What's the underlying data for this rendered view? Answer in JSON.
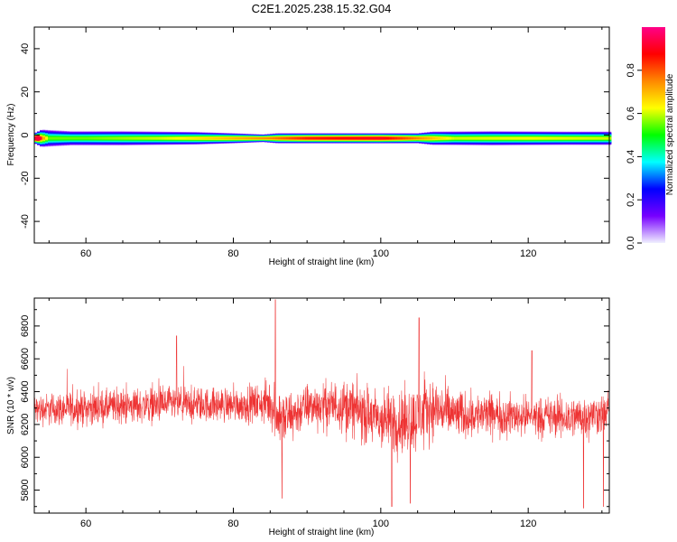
{
  "title": "C2E1.2025.238.15.32.G04",
  "colors": {
    "snr_line": "#ee3333",
    "axis": "#000000",
    "background": "#ffffff"
  },
  "colorbar": {
    "label": "Normalized spectral amplitude",
    "ticks": [
      "0.0",
      "0.2",
      "0.4",
      "0.6",
      "0.8"
    ],
    "range": [
      0,
      1
    ],
    "stops": [
      "#f0f0ff",
      "#7700ff",
      "#0000ff",
      "#00ffff",
      "#00ff00",
      "#ffff00",
      "#ff8800",
      "#ff0000",
      "#ff0088"
    ]
  },
  "chart_data": [
    {
      "type": "heatmap",
      "xlabel": "Height of straight line (km)",
      "ylabel": "Frequency (Hz)",
      "xlim": [
        53,
        131
      ],
      "ylim": [
        -50,
        50
      ],
      "xticks": [
        60,
        80,
        100,
        120
      ],
      "yticks": [
        -40,
        -20,
        0,
        20,
        40
      ],
      "xtick_labels": [
        "60",
        "80",
        "100",
        "120"
      ],
      "ytick_labels": [
        "-40",
        "-20",
        "0",
        "20",
        "40"
      ],
      "band_center_hz": -1.5,
      "band_halfwidth_hz": [
        [
          53,
          2.2
        ],
        [
          54,
          4.0
        ],
        [
          58,
          3.2
        ],
        [
          65,
          3.2
        ],
        [
          75,
          2.8
        ],
        [
          80,
          2.2
        ],
        [
          84,
          1.6
        ],
        [
          86,
          2.2
        ],
        [
          95,
          2.2
        ],
        [
          100,
          2.2
        ],
        [
          105,
          2.2
        ],
        [
          107,
          3.0
        ],
        [
          115,
          3.2
        ],
        [
          125,
          3.0
        ],
        [
          131,
          3.0
        ]
      ],
      "band_peak_amplitude": [
        [
          53,
          1.0
        ],
        [
          55,
          0.55
        ],
        [
          60,
          0.55
        ],
        [
          70,
          0.6
        ],
        [
          80,
          0.7
        ],
        [
          85,
          0.75
        ],
        [
          90,
          0.85
        ],
        [
          100,
          0.9
        ],
        [
          105,
          0.75
        ],
        [
          110,
          0.6
        ],
        [
          120,
          0.62
        ],
        [
          131,
          0.6
        ]
      ]
    },
    {
      "type": "line",
      "xlabel": "Height of straight line (km)",
      "ylabel": "SNR (10 * v/v)",
      "xlim": [
        53,
        131
      ],
      "ylim": [
        5660,
        6970
      ],
      "xticks": [
        60,
        80,
        100,
        120
      ],
      "yticks": [
        5800,
        6000,
        6200,
        6400,
        6600,
        6800
      ],
      "xtick_labels": [
        "60",
        "80",
        "100",
        "120"
      ],
      "ytick_labels": [
        "5800",
        "6000",
        "6200",
        "6400",
        "6600",
        "6800"
      ],
      "series": [
        {
          "mean": [
            [
              53,
              6290
            ],
            [
              60,
              6300
            ],
            [
              70,
              6320
            ],
            [
              80,
              6320
            ],
            [
              85,
              6330
            ],
            [
              87,
              6230
            ],
            [
              90,
              6310
            ],
            [
              95,
              6320
            ],
            [
              100,
              6220
            ],
            [
              104,
              6220
            ],
            [
              107,
              6300
            ],
            [
              110,
              6260
            ],
            [
              115,
              6260
            ],
            [
              120,
              6250
            ],
            [
              125,
              6240
            ],
            [
              131,
              6270
            ]
          ],
          "spread": [
            [
              53,
              140
            ],
            [
              60,
              150
            ],
            [
              70,
              160
            ],
            [
              80,
              150
            ],
            [
              84,
              170
            ],
            [
              85.5,
              260
            ],
            [
              87,
              250
            ],
            [
              90,
              190
            ],
            [
              95,
              230
            ],
            [
              100,
              280
            ],
            [
              104,
              300
            ],
            [
              107,
              260
            ],
            [
              112,
              200
            ],
            [
              120,
              170
            ],
            [
              126,
              190
            ],
            [
              131,
              170
            ]
          ],
          "extremes": [
            [
              85.7,
              6960
            ],
            [
              86.6,
              5750
            ],
            [
              105.2,
              6850
            ],
            [
              101.5,
              5700
            ],
            [
              104.0,
              5720
            ],
            [
              127.5,
              5690
            ],
            [
              130.2,
              5700
            ],
            [
              72.3,
              6740
            ],
            [
              120.5,
              6650
            ]
          ]
        }
      ]
    }
  ]
}
